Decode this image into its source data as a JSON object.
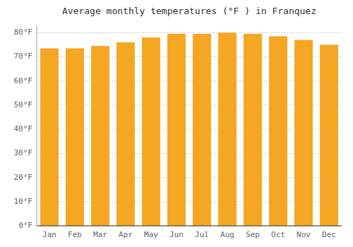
{
  "chart_data": {
    "type": "bar",
    "title": "Average monthly temperatures (°F ) in Franquez",
    "categories": [
      "Jan",
      "Feb",
      "Mar",
      "Apr",
      "May",
      "Jun",
      "Jul",
      "Aug",
      "Sep",
      "Oct",
      "Nov",
      "Dec"
    ],
    "values": [
      73.5,
      73.5,
      74.5,
      76.0,
      78.0,
      79.5,
      79.5,
      80.0,
      79.5,
      78.5,
      77.0,
      75.0
    ],
    "color": "#F5A623",
    "ylim": [
      0,
      83
    ],
    "yticks": [
      {
        "value": 0,
        "label": "0°F"
      },
      {
        "value": 10,
        "label": "10°F"
      },
      {
        "value": 20,
        "label": "20°F"
      },
      {
        "value": 30,
        "label": "30°F"
      },
      {
        "value": 40,
        "label": "40°F"
      },
      {
        "value": 50,
        "label": "50°F"
      },
      {
        "value": 60,
        "label": "60°F"
      },
      {
        "value": 70,
        "label": "70°F"
      },
      {
        "value": 80,
        "label": "80°F"
      }
    ],
    "grid": true
  }
}
